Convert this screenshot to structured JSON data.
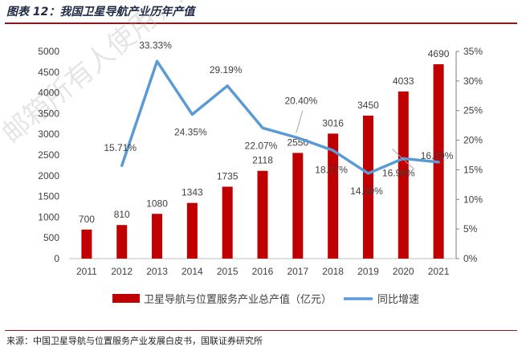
{
  "header": {
    "title": "图表 12：我国卫星导航产业历年产值"
  },
  "footer": {
    "source": "来源：中国卫星导航与位置服务产业发展白皮书，国联证券研究所"
  },
  "watermark": {
    "text": "邮箱所有人使用，未经"
  },
  "colors": {
    "bar": "#c00000",
    "line": "#5b9bd5",
    "rule": "#8b1a1a"
  },
  "chart_data": {
    "type": "bar",
    "categories": [
      "2011",
      "2012",
      "2013",
      "2014",
      "2015",
      "2016",
      "2017",
      "2018",
      "2019",
      "2020",
      "2021"
    ],
    "series": [
      {
        "name": "卫星导航与位置服务产业总产值（亿元）",
        "type": "bar",
        "axis": "left",
        "values": [
          700,
          810,
          1080,
          1343,
          1735,
          2118,
          2550,
          3016,
          3450,
          4033,
          4690
        ],
        "labels": [
          "700",
          "810",
          "1080",
          "1343",
          "1735",
          "2118",
          "2550",
          "3016",
          "3450",
          "4033",
          "4690"
        ]
      },
      {
        "name": "同比增速",
        "type": "line",
        "axis": "right",
        "values": [
          null,
          15.71,
          33.33,
          24.35,
          29.19,
          22.07,
          20.4,
          18.27,
          14.39,
          16.9,
          16.29
        ],
        "labels": [
          "",
          "15.71%",
          "33.33%",
          "24.35%",
          "29.19%",
          "22.07%",
          "20.40%",
          "18.27%",
          "14.39%",
          "16.90%",
          "16.29%"
        ]
      }
    ],
    "y_left": {
      "min": 0,
      "max": 5000,
      "ticks": [
        "0",
        "500",
        "1000",
        "1500",
        "2000",
        "2500",
        "3000",
        "3500",
        "4000",
        "4500",
        "5000"
      ]
    },
    "y_right": {
      "min": 0,
      "max": 35,
      "ticks": [
        "0%",
        "5%",
        "10%",
        "15%",
        "20%",
        "25%",
        "30%",
        "35%"
      ]
    },
    "legend_position": "bottom",
    "grid": false
  }
}
